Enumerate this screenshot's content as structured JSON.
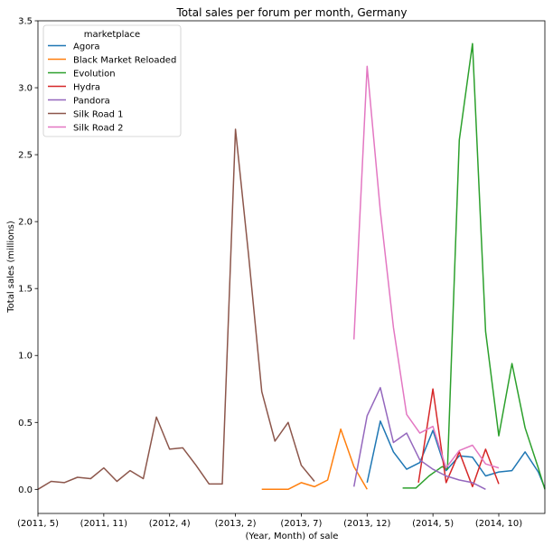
{
  "chart_data": {
    "type": "line",
    "title": "Total sales per forum per month, Germany",
    "xlabel": "(Year, Month) of sale",
    "ylabel": "Total sales (millions)",
    "xlim": [
      0,
      38.5
    ],
    "ylim": [
      -0.18,
      3.5
    ],
    "x_ticks": [
      {
        "x": 0,
        "label": "(2011, 5)"
      },
      {
        "x": 5,
        "label": "(2011, 11)"
      },
      {
        "x": 10,
        "label": "(2012, 4)"
      },
      {
        "x": 15,
        "label": "(2013, 2)"
      },
      {
        "x": 20,
        "label": "(2013, 7)"
      },
      {
        "x": 25,
        "label": "(2013, 12)"
      },
      {
        "x": 30,
        "label": "(2014, 5)"
      },
      {
        "x": 35,
        "label": "(2014, 10)"
      }
    ],
    "y_ticks": [
      0.0,
      0.5,
      1.0,
      1.5,
      2.0,
      2.5,
      3.0,
      3.5
    ],
    "y_tick_labels": [
      "0.0",
      "0.5",
      "1.0",
      "1.5",
      "2.0",
      "2.5",
      "3.0",
      "3.5"
    ],
    "legend": {
      "title": "marketplace",
      "position": "top-left"
    },
    "series": [
      {
        "name": "Agora",
        "color": "#1f77b4",
        "x": [
          25,
          26,
          27,
          28,
          29,
          30,
          31,
          32,
          33,
          34,
          35,
          36,
          37,
          38,
          38.5
        ],
        "y": [
          0.05,
          0.51,
          0.28,
          0.15,
          0.2,
          0.44,
          0.14,
          0.25,
          0.24,
          0.1,
          0.13,
          0.14,
          0.28,
          0.13,
          0.01
        ]
      },
      {
        "name": "Black Market Reloaded",
        "color": "#ff7f0e",
        "x": [
          17,
          18,
          19,
          20,
          21,
          22,
          23,
          24,
          25
        ],
        "y": [
          0.0,
          0.0,
          0.0,
          0.05,
          0.02,
          0.07,
          0.45,
          0.17,
          0.0
        ]
      },
      {
        "name": "Evolution",
        "color": "#2ca02c",
        "x": [
          27.7,
          28.7,
          29.7,
          30.7,
          31.1,
          32.0,
          33.0,
          34.0,
          35.0,
          36.0,
          37.0,
          38.0,
          38.5
        ],
        "y": [
          0.01,
          0.01,
          0.1,
          0.17,
          0.15,
          2.61,
          3.33,
          1.18,
          0.4,
          0.94,
          0.46,
          0.16,
          0.0
        ]
      },
      {
        "name": "Hydra",
        "color": "#d62728",
        "x": [
          28.9,
          30.0,
          31.0,
          32.0,
          33.0,
          34.0,
          35.0
        ],
        "y": [
          0.05,
          0.75,
          0.05,
          0.28,
          0.02,
          0.3,
          0.04
        ]
      },
      {
        "name": "Pandora",
        "color": "#9467bd",
        "x": [
          24,
          25,
          26,
          27,
          28,
          29,
          30,
          31,
          32,
          33,
          34
        ],
        "y": [
          0.02,
          0.55,
          0.76,
          0.35,
          0.42,
          0.22,
          0.15,
          0.1,
          0.07,
          0.05,
          0.0
        ]
      },
      {
        "name": "Silk Road 1",
        "color": "#8c564b",
        "x": [
          0,
          1,
          2,
          3,
          4,
          5,
          6,
          7,
          8,
          9,
          10,
          11,
          12,
          13,
          14,
          15,
          16,
          17,
          18,
          19,
          20,
          21
        ],
        "y": [
          0.0,
          0.06,
          0.05,
          0.09,
          0.08,
          0.16,
          0.06,
          0.14,
          0.08,
          0.54,
          0.3,
          0.31,
          0.18,
          0.04,
          0.04,
          2.69,
          1.75,
          0.73,
          0.36,
          0.5,
          0.18,
          0.06
        ]
      },
      {
        "name": "Silk Road 2",
        "color": "#e377c2",
        "x": [
          24,
          25,
          26,
          27,
          28,
          29,
          30,
          31,
          32,
          33,
          34,
          35
        ],
        "y": [
          1.12,
          3.16,
          2.08,
          1.21,
          0.56,
          0.42,
          0.47,
          0.16,
          0.29,
          0.33,
          0.19,
          0.16
        ]
      }
    ]
  }
}
